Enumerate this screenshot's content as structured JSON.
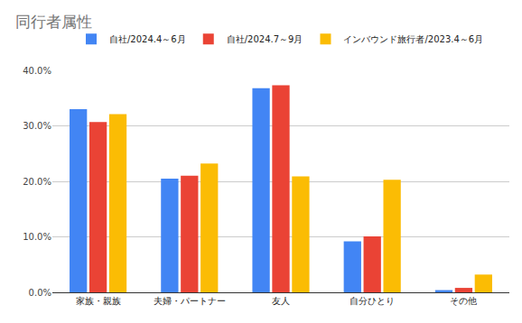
{
  "chart_data": {
    "type": "bar",
    "title": "同行者属性",
    "categories": [
      "家族・親族",
      "夫婦・パートナー",
      "友人",
      "自分ひとり",
      "その他"
    ],
    "series": [
      {
        "name": "自社/2024.4～6月",
        "color": "#4285f4",
        "values": [
          33.0,
          20.5,
          36.8,
          9.2,
          0.4
        ]
      },
      {
        "name": "自社/2024.7～9月",
        "color": "#ea4335",
        "values": [
          30.7,
          21.0,
          37.3,
          10.1,
          0.8
        ]
      },
      {
        "name": "インバウンド旅行者/2023.4～6月",
        "color": "#fbbc04",
        "values": [
          32.1,
          23.2,
          20.9,
          20.3,
          3.2
        ]
      }
    ],
    "ylim": [
      0,
      40
    ],
    "yticks": [
      {
        "value": 0,
        "label": "0.0%"
      },
      {
        "value": 10,
        "label": "10.0%"
      },
      {
        "value": 20,
        "label": "20.0%"
      },
      {
        "value": 30,
        "label": "30.0%"
      },
      {
        "value": 40,
        "label": "40.0%"
      }
    ],
    "grid": true,
    "legend": "top"
  }
}
